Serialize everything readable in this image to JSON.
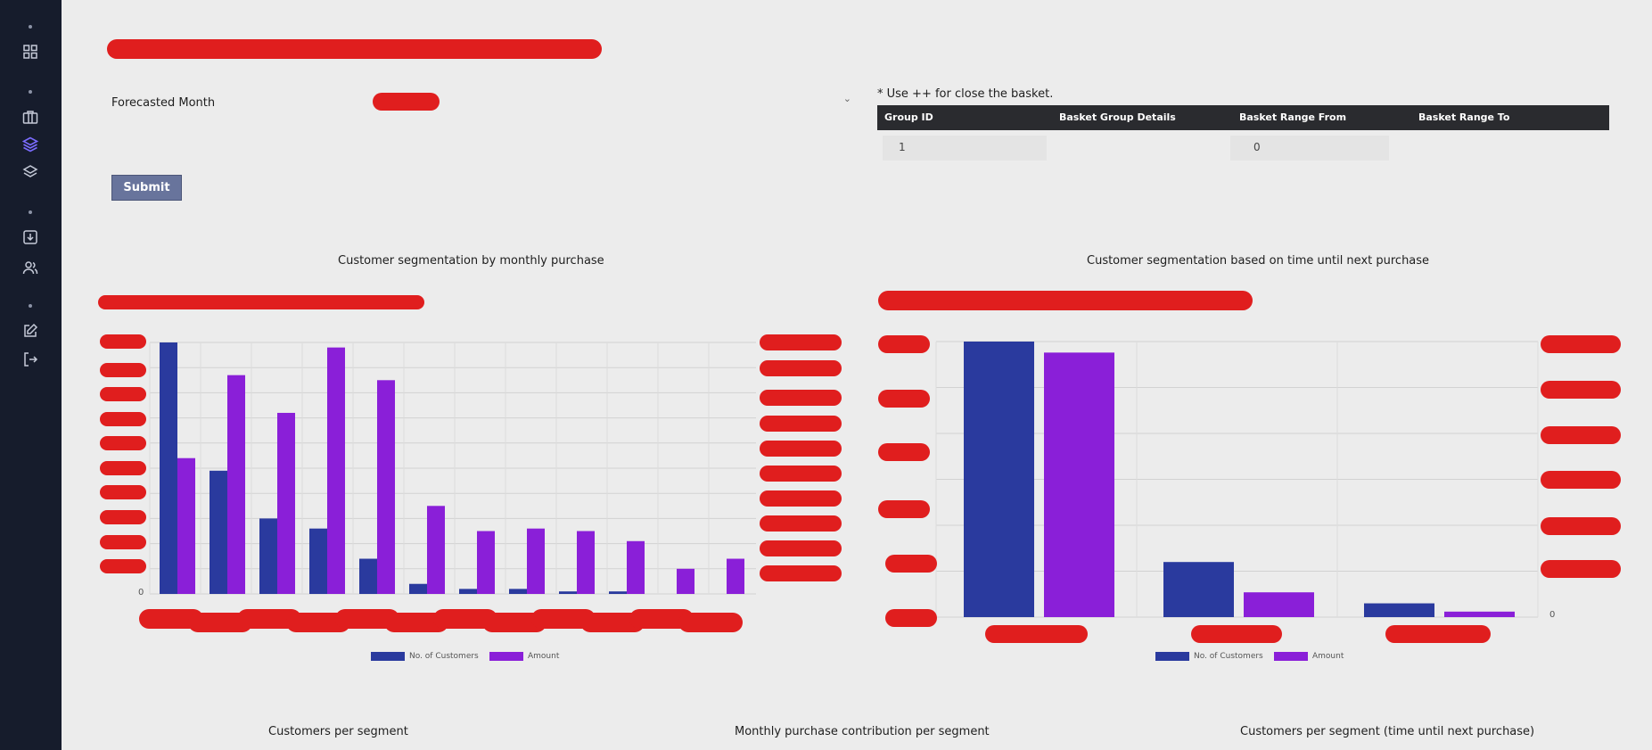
{
  "sidebar": {
    "icons": [
      "grid-icon",
      "briefcase-icon",
      "layers-active-icon",
      "layers-icon",
      "download-box-icon",
      "users-icon",
      "edit-icon",
      "logout-icon"
    ]
  },
  "form": {
    "forecast_label": "Forecasted Month",
    "forecast_value": "",
    "submit_label": "Submit"
  },
  "basket": {
    "note": "* Use ++ for close the basket.",
    "columns": [
      "Group ID",
      "Basket Group Details",
      "Basket Range From",
      "Basket Range To"
    ],
    "rows": [
      {
        "group_id": "1",
        "details": "",
        "range_from": "0",
        "range_to": ""
      }
    ]
  },
  "colors": {
    "customers": "#2a3a9e",
    "amount": "#8a1fd8",
    "sidebar_bg": "#161c2c",
    "submit_bg": "#68749c",
    "table_header_bg": "#2a2b2f"
  },
  "chart_data": [
    {
      "type": "bar",
      "title": "Customer segmentation by monthly purchase",
      "series": [
        {
          "name": "No. of Customers",
          "values": [
            100,
            49,
            30,
            26,
            14,
            4,
            2,
            2,
            1,
            1,
            0,
            0
          ]
        },
        {
          "name": "Amount",
          "values": [
            54,
            87,
            72,
            98,
            85,
            35,
            25,
            26,
            25,
            21,
            10,
            14
          ]
        }
      ],
      "y_tick_label": "0",
      "grid": true,
      "legend": "bottom-center"
    },
    {
      "type": "bar",
      "title": "Customer segmentation based on time until next purchase",
      "series": [
        {
          "name": "No. of Customers",
          "values": [
            100,
            20,
            5
          ]
        },
        {
          "name": "Amount",
          "values": [
            96,
            9,
            2
          ]
        }
      ],
      "y_tick_label": "0",
      "grid": true,
      "legend": "bottom-center"
    }
  ],
  "bottom_titles": {
    "t1": "Customers per segment",
    "t2": "Monthly purchase contribution per segment",
    "t3": "Customers per segment (time until next purchase)"
  }
}
